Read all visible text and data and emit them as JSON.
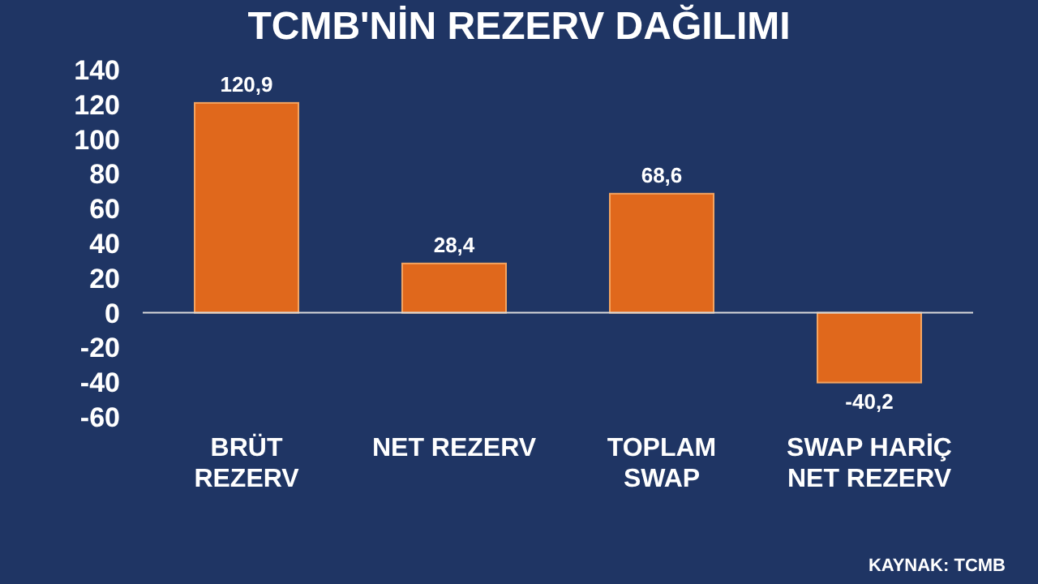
{
  "chart_data": {
    "type": "bar",
    "title": "TCMB'NİN REZERV DAĞILIMI",
    "categories": [
      "BRÜT REZERV",
      "NET REZERV",
      "TOPLAM SWAP",
      "SWAP HARİÇ NET REZERV"
    ],
    "values": [
      120.9,
      28.4,
      68.6,
      -40.2
    ],
    "value_labels": [
      "120,9",
      "28,4",
      "68,6",
      "-40,2"
    ],
    "color": "#e0681c",
    "ylim": [
      -60,
      140
    ],
    "yticks": [
      -60,
      -40,
      -20,
      0,
      20,
      40,
      60,
      80,
      100,
      120,
      140
    ],
    "annotations": [
      "KAYNAK: TCMB"
    ]
  }
}
